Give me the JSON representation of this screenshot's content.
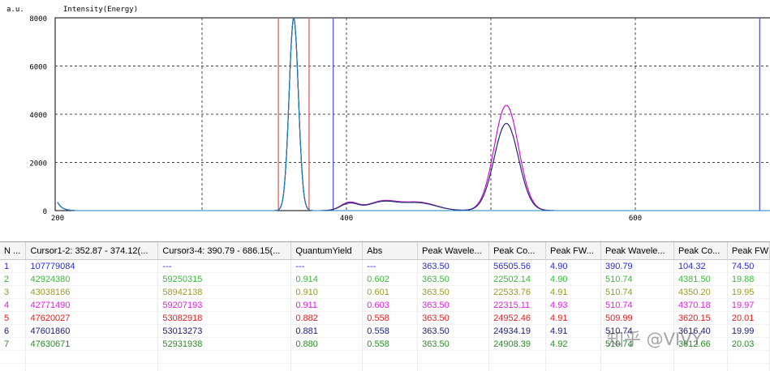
{
  "chart": {
    "y_unit": "a.u.",
    "title": "Intensity(Energy)",
    "background": "#ffffff",
    "grid": true,
    "grid_color": "#444444"
  },
  "chart_data": {
    "type": "line",
    "title": "Intensity(Energy)",
    "ylabel": "a.u.",
    "xlabel": "",
    "xlim": [
      198,
      700
    ],
    "ylim": [
      0,
      8000
    ],
    "x_ticks": [
      "200",
      "400",
      "600"
    ],
    "y_ticks": [
      "0",
      "2000",
      "4000",
      "6000",
      "8000"
    ],
    "cursors": [
      {
        "x": 352.87,
        "color": "#e06060"
      },
      {
        "x": 374.12,
        "color": "#e06060"
      },
      {
        "x": 390.79,
        "color": "#5a5ae0"
      },
      {
        "x": 686.15,
        "color": "#5a5ae0"
      }
    ],
    "series": [
      {
        "color": "#cc00cc",
        "excitation_peak": 8000,
        "emission_peak": 4370,
        "low_hump": 330,
        "shoulder": 380
      },
      {
        "color": "#2f7a2f",
        "excitation_peak": 8000,
        "emission_peak": 3620,
        "low_hump": 300,
        "shoulder": 360
      },
      {
        "color": "#2a2a8a",
        "excitation_peak": 8000,
        "emission_peak": 3616,
        "low_hump": 290,
        "shoulder": 350
      },
      {
        "color": "#1a7fc0",
        "excitation_peak": 8000,
        "emission_peak": 0,
        "low_hump": 0,
        "shoulder": 0
      }
    ]
  },
  "table": {
    "columns": [
      "N ...",
      "Cursor1-2: 352.87 - 374.12(...",
      "Cursor3-4: 390.79 - 686.15(...",
      "QuantumYield",
      "Abs",
      "Peak Wavele...",
      "Peak Co...",
      "Peak FW...",
      "Peak Wavele...",
      "Peak Co...",
      "Peak FW"
    ],
    "rows": [
      {
        "color": "#2b2bd0",
        "cells": [
          "1",
          "107779084",
          "---",
          "---",
          "---",
          "363.50",
          "56505.56",
          "4.90",
          "390.79",
          "104.32",
          "74.50"
        ]
      },
      {
        "color": "#3cb83c",
        "cells": [
          "2",
          "42924380",
          "59250315",
          "0.914",
          "0.602",
          "363.50",
          "22502.14",
          "4.90",
          "510.74",
          "4381.50",
          "19.88"
        ]
      },
      {
        "color": "#9a9a28",
        "cells": [
          "3",
          "43038166",
          "58942138",
          "0.910",
          "0.601",
          "363.50",
          "22533.76",
          "4.91",
          "510.74",
          "4350.20",
          "19.95"
        ]
      },
      {
        "color": "#e020e0",
        "cells": [
          "4",
          "42771490",
          "59207193",
          "0.911",
          "0.603",
          "363.50",
          "22315.11",
          "4.93",
          "510.74",
          "4370.18",
          "19.97"
        ]
      },
      {
        "color": "#e02020",
        "cells": [
          "5",
          "47620027",
          "53082918",
          "0.882",
          "0.558",
          "363.50",
          "24952.46",
          "4.91",
          "509.99",
          "3620.15",
          "20.01"
        ]
      },
      {
        "color": "#20207a",
        "cells": [
          "6",
          "47601860",
          "53013273",
          "0.881",
          "0.558",
          "363.50",
          "24934.19",
          "4.91",
          "510.74",
          "3616.40",
          "19.99"
        ]
      },
      {
        "color": "#2a8a2a",
        "cells": [
          "7",
          "47630671",
          "52931938",
          "0.880",
          "0.558",
          "363.50",
          "24908.39",
          "4.92",
          "510.74",
          "3612.66",
          "20.03"
        ]
      }
    ]
  },
  "watermark": "知乎 @VIVY"
}
